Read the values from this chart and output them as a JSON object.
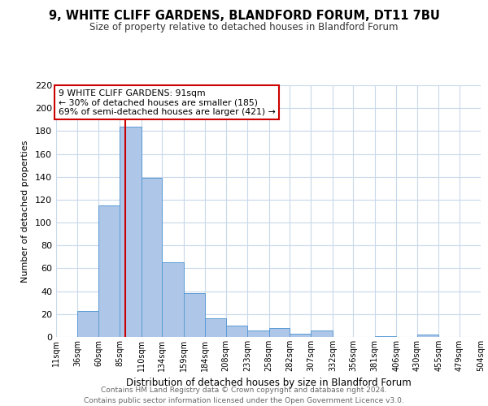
{
  "title": "9, WHITE CLIFF GARDENS, BLANDFORD FORUM, DT11 7BU",
  "subtitle": "Size of property relative to detached houses in Blandford Forum",
  "xlabel": "Distribution of detached houses by size in Blandford Forum",
  "ylabel": "Number of detached properties",
  "footnote": "Contains HM Land Registry data © Crown copyright and database right 2024.\nContains public sector information licensed under the Open Government Licence v3.0.",
  "bin_edges": [
    11,
    36,
    60,
    85,
    110,
    134,
    159,
    184,
    208,
    233,
    258,
    282,
    307,
    332,
    356,
    381,
    406,
    430,
    455,
    479,
    504
  ],
  "bin_labels": [
    "11sqm",
    "36sqm",
    "60sqm",
    "85sqm",
    "110sqm",
    "134sqm",
    "159sqm",
    "184sqm",
    "208sqm",
    "233sqm",
    "258sqm",
    "282sqm",
    "307sqm",
    "332sqm",
    "356sqm",
    "381sqm",
    "406sqm",
    "430sqm",
    "455sqm",
    "479sqm",
    "504sqm"
  ],
  "counts": [
    0,
    23,
    115,
    184,
    139,
    65,
    38,
    16,
    10,
    6,
    8,
    3,
    6,
    0,
    0,
    1,
    0,
    2,
    0,
    0
  ],
  "bar_color": "#aec6e8",
  "bar_edgecolor": "#5b9bd5",
  "vline_x": 91,
  "vline_color": "#cc0000",
  "ylim": [
    0,
    220
  ],
  "yticks": [
    0,
    20,
    40,
    60,
    80,
    100,
    120,
    140,
    160,
    180,
    200,
    220
  ],
  "annotation_text": "9 WHITE CLIFF GARDENS: 91sqm\n← 30% of detached houses are smaller (185)\n69% of semi-detached houses are larger (421) →",
  "annotation_box_edgecolor": "#cc0000",
  "background_color": "#ffffff",
  "grid_color": "#c8d8ea"
}
